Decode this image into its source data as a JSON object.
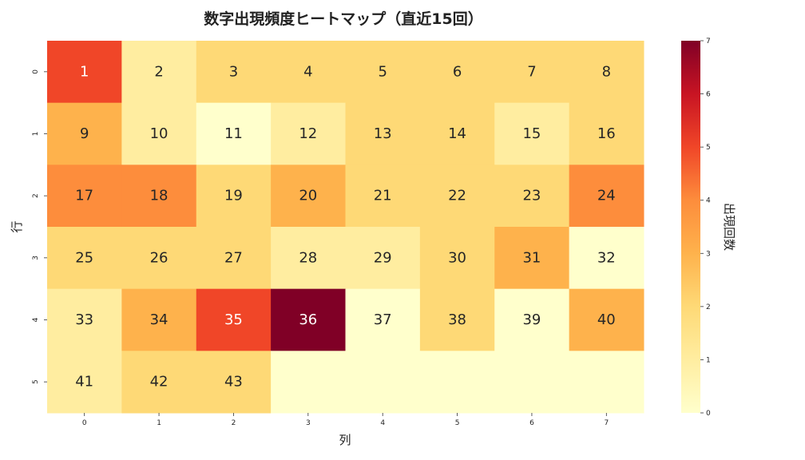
{
  "chart_data": {
    "type": "heatmap",
    "title": "数字出現頻度ヒートマップ（直近15回）",
    "xlabel": "列",
    "ylabel": "行",
    "colorbar_label": "出現回数",
    "x_ticks": [
      "0",
      "1",
      "2",
      "3",
      "4",
      "5",
      "6",
      "7"
    ],
    "y_ticks": [
      "0",
      "1",
      "2",
      "3",
      "4",
      "5"
    ],
    "colorbar_ticks": [
      "0",
      "1",
      "2",
      "3",
      "4",
      "5",
      "6",
      "7"
    ],
    "colorbar_range": [
      0,
      7
    ],
    "colormap": "YlOrRd",
    "rows": [
      {
        "labels": [
          "1",
          "2",
          "3",
          "4",
          "5",
          "6",
          "7",
          "8"
        ],
        "values": [
          5,
          1,
          2,
          2,
          2,
          2,
          2,
          2
        ]
      },
      {
        "labels": [
          "9",
          "10",
          "11",
          "12",
          "13",
          "14",
          "15",
          "16"
        ],
        "values": [
          3,
          1,
          0,
          1,
          2,
          2,
          1,
          2
        ]
      },
      {
        "labels": [
          "17",
          "18",
          "19",
          "20",
          "21",
          "22",
          "23",
          "24"
        ],
        "values": [
          4,
          4,
          2,
          3,
          2,
          2,
          2,
          4
        ]
      },
      {
        "labels": [
          "25",
          "26",
          "27",
          "28",
          "29",
          "30",
          "31",
          "32"
        ],
        "values": [
          2,
          2,
          2,
          1,
          1,
          2,
          3,
          0
        ]
      },
      {
        "labels": [
          "33",
          "34",
          "35",
          "36",
          "37",
          "38",
          "39",
          "40"
        ],
        "values": [
          1,
          3,
          5,
          7,
          0,
          2,
          0,
          3
        ]
      },
      {
        "labels": [
          "41",
          "42",
          "43",
          "",
          "",
          "",
          "",
          ""
        ],
        "values": [
          1,
          2,
          2,
          0,
          0,
          0,
          0,
          0
        ]
      }
    ]
  }
}
